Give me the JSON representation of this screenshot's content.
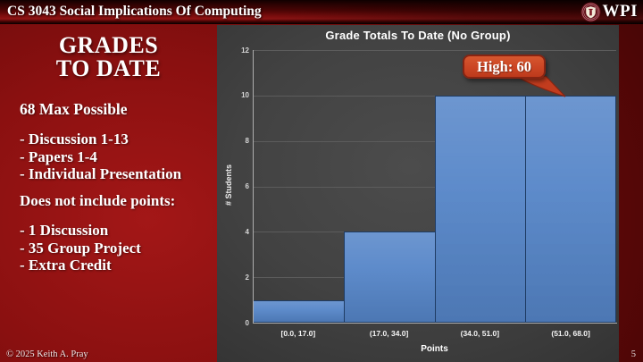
{
  "header": {
    "course_title": "CS 3043 Social Implications Of Computing",
    "logo_text": "WPI"
  },
  "slide": {
    "title_line1": "GRADES",
    "title_line2": "TO DATE",
    "max_points": "68 Max Possible",
    "included_items": [
      "- Discussion 1-13",
      "- Papers 1-4",
      "- Individual Presentation"
    ],
    "excluded_heading": "Does not include points:",
    "excluded_items": [
      "- 1 Discussion",
      "- 35 Group Project",
      "- Extra Credit"
    ]
  },
  "chart_data": {
    "type": "bar",
    "title": "Grade Totals To Date (No Group)",
    "categories": [
      "[0.0, 17.0]",
      "(17.0, 34.0]",
      "(34.0, 51.0]",
      "(51.0, 68.0]"
    ],
    "values": [
      1,
      4,
      10,
      10
    ],
    "xlabel": "Points",
    "ylabel": "# Students",
    "ylim": [
      0,
      12
    ],
    "yticks": [
      0,
      2,
      4,
      6,
      8,
      10,
      12
    ],
    "grid": true,
    "legend_position": "none",
    "bar_color": "#5585C8",
    "bar_border_color": "#1F3C64",
    "annotation": {
      "text": "High: 60",
      "fill_color": "#CB4524",
      "border_color": "#872412",
      "points_to_category": "(51.0, 68.0]"
    }
  },
  "footer": {
    "copyright": "© 2025 Keith A. Pray",
    "page_number": "5"
  },
  "theme": {
    "slide_red": "#8A1010",
    "panel_gray": "#3D3D3D",
    "text_color": "#FFFFFF"
  }
}
